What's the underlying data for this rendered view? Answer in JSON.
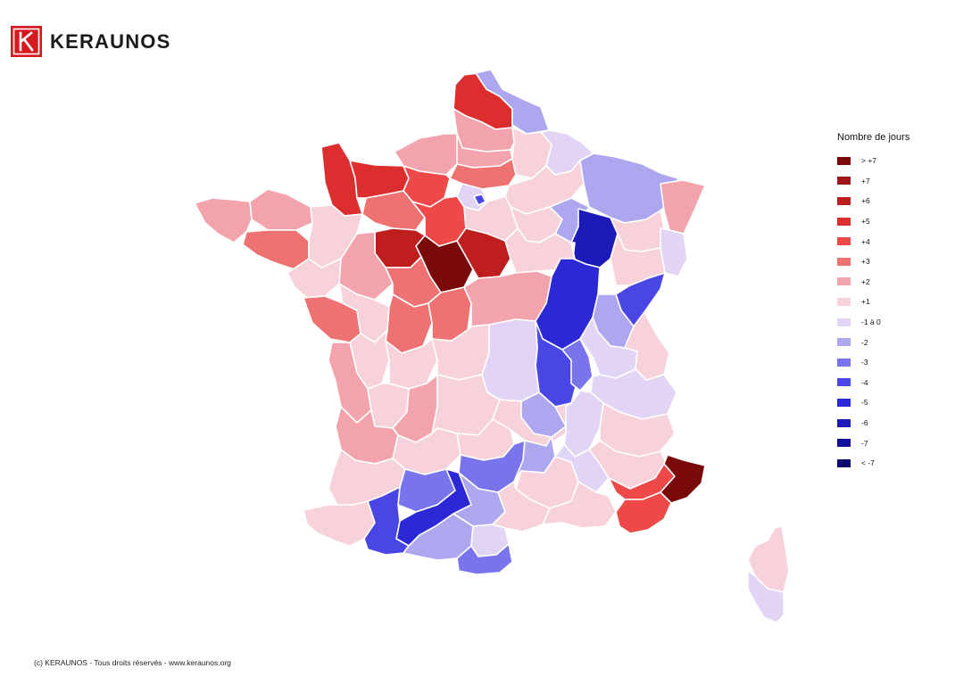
{
  "header": {
    "brand_name": "KERAUNOS",
    "logo_letter": "K",
    "logo_color": "#d71920"
  },
  "map": {
    "subject": "France-by-department",
    "border_color": "#ffffff",
    "regions": [
      {
        "id": "nord",
        "cls": "+5"
      },
      {
        "id": "nord-east-flanders",
        "cls": "-2"
      },
      {
        "id": "aisne",
        "cls": "+1"
      },
      {
        "id": "ardennes",
        "cls": "-1 à 0"
      },
      {
        "id": "pas-de-calais-coast",
        "cls": "+2"
      },
      {
        "id": "seine-maritime",
        "cls": "+2"
      },
      {
        "id": "somme",
        "cls": "+2"
      },
      {
        "id": "oise",
        "cls": "+3"
      },
      {
        "id": "manche",
        "cls": "+5"
      },
      {
        "id": "calvados",
        "cls": "+5"
      },
      {
        "id": "eure",
        "cls": "+4"
      },
      {
        "id": "paris-petite-couronne",
        "cls": "-1 à 0"
      },
      {
        "id": "paris-inner",
        "cls": "-4"
      },
      {
        "id": "marne",
        "cls": "+1"
      },
      {
        "id": "meuse-moselle",
        "cls": "-2"
      },
      {
        "id": "alsace",
        "cls": "+2"
      },
      {
        "id": "finistere",
        "cls": "+2"
      },
      {
        "id": "cotes-d-armor",
        "cls": "+2"
      },
      {
        "id": "morbihan",
        "cls": "+3"
      },
      {
        "id": "ille-et-vilaine",
        "cls": "+1"
      },
      {
        "id": "orne",
        "cls": "+3"
      },
      {
        "id": "eure-et-loir",
        "cls": "+4"
      },
      {
        "id": "seine-et-marne",
        "cls": "+1"
      },
      {
        "id": "aube",
        "cls": "+1"
      },
      {
        "id": "haute-marne",
        "cls": "-2"
      },
      {
        "id": "cote-d-or",
        "cls": "-6"
      },
      {
        "id": "vosges-haute-saone",
        "cls": "+1"
      },
      {
        "id": "territoire-de-belfort",
        "cls": "-1 à 0"
      },
      {
        "id": "sarthe",
        "cls": "+6"
      },
      {
        "id": "loir-et-cher",
        "cls": "> +7"
      },
      {
        "id": "loiret",
        "cls": "+6"
      },
      {
        "id": "yonne",
        "cls": "+1"
      },
      {
        "id": "nievre-saone-et-loire",
        "cls": "-5"
      },
      {
        "id": "doubs",
        "cls": "+1"
      },
      {
        "id": "jura",
        "cls": "-4"
      },
      {
        "id": "ain",
        "cls": "-2"
      },
      {
        "id": "mayenne-maine",
        "cls": "+2"
      },
      {
        "id": "loire-atlantique",
        "cls": "+1"
      },
      {
        "id": "vendee",
        "cls": "+3"
      },
      {
        "id": "maine-et-loire",
        "cls": "+1"
      },
      {
        "id": "indre-et-loire",
        "cls": "+3"
      },
      {
        "id": "indre",
        "cls": "+3"
      },
      {
        "id": "cher",
        "cls": "+3"
      },
      {
        "id": "allier",
        "cls": "+2"
      },
      {
        "id": "loire",
        "cls": "-4"
      },
      {
        "id": "rhone-isere",
        "cls": "-3"
      },
      {
        "id": "savoie",
        "cls": "-1 à 0"
      },
      {
        "id": "haute-savoie",
        "cls": "+1"
      },
      {
        "id": "isere-south",
        "cls": "-1 à 0"
      },
      {
        "id": "deux-sevres",
        "cls": "+1"
      },
      {
        "id": "charente-maritime",
        "cls": "+2"
      },
      {
        "id": "vienne",
        "cls": "+1"
      },
      {
        "id": "creuse",
        "cls": "+1"
      },
      {
        "id": "puy-de-dome",
        "cls": "-1 à 0"
      },
      {
        "id": "charente",
        "cls": "+1"
      },
      {
        "id": "haute-vienne",
        "cls": "+2"
      },
      {
        "id": "correze",
        "cls": "+1"
      },
      {
        "id": "cantal-haute-loire",
        "cls": "+1"
      },
      {
        "id": "ardeche",
        "cls": "-2"
      },
      {
        "id": "drome",
        "cls": "-1 à 0"
      },
      {
        "id": "hautes-alpes",
        "cls": "+1"
      },
      {
        "id": "gironde",
        "cls": "+2"
      },
      {
        "id": "dordogne",
        "cls": "+1"
      },
      {
        "id": "lot",
        "cls": "+1"
      },
      {
        "id": "aveyron",
        "cls": "-3"
      },
      {
        "id": "lozere",
        "cls": "-2"
      },
      {
        "id": "gard",
        "cls": "+1"
      },
      {
        "id": "vaucluse",
        "cls": "-1 à 0"
      },
      {
        "id": "alpes-de-haute-provence",
        "cls": "+1"
      },
      {
        "id": "landes",
        "cls": "+1"
      },
      {
        "id": "lot-et-garonne",
        "cls": "-3"
      },
      {
        "id": "tarn-et-garonne",
        "cls": "-5"
      },
      {
        "id": "tarn",
        "cls": "-2"
      },
      {
        "id": "herault",
        "cls": "+1"
      },
      {
        "id": "bouches-du-rhone",
        "cls": "+1"
      },
      {
        "id": "vaucluse-east",
        "cls": "+4"
      },
      {
        "id": "alpes-maritimes",
        "cls": "> +7"
      },
      {
        "id": "var",
        "cls": "+4"
      },
      {
        "id": "pyrenees-atlantiques",
        "cls": "+1"
      },
      {
        "id": "gers-hautes-pyrenees",
        "cls": "-4"
      },
      {
        "id": "haute-garonne",
        "cls": "-2"
      },
      {
        "id": "aude",
        "cls": "-1 à 0"
      },
      {
        "id": "pyrenees-orientales-ariege",
        "cls": "-3"
      },
      {
        "id": "haute-corse",
        "cls": "+1"
      },
      {
        "id": "corse-du-sud",
        "cls": "-1 à 0"
      }
    ]
  },
  "legend": {
    "title": "Nombre de jours",
    "items": [
      {
        "label": "> +7",
        "color": "#7a0a0a"
      },
      {
        "label": "+7",
        "color": "#a11717"
      },
      {
        "label": "+6",
        "color": "#bf1e1e"
      },
      {
        "label": "+5",
        "color": "#dc2e2e"
      },
      {
        "label": "+4",
        "color": "#ee4848"
      },
      {
        "label": "+3",
        "color": "#ef7272"
      },
      {
        "label": "+2",
        "color": "#f3a3ab"
      },
      {
        "label": "+1",
        "color": "#f8d2da"
      },
      {
        "label": "-1 à 0",
        "color": "#e1d4f4"
      },
      {
        "label": "-2",
        "color": "#ada7f0"
      },
      {
        "label": "-3",
        "color": "#7a74ec"
      },
      {
        "label": "-4",
        "color": "#4a46e6"
      },
      {
        "label": "-5",
        "color": "#2c28d6"
      },
      {
        "label": "-6",
        "color": "#1c1ab8"
      },
      {
        "label": "-7",
        "color": "#12109a"
      },
      {
        "label": "< -7",
        "color": "#0a0870"
      }
    ]
  },
  "footer": {
    "copyright": "(c) KERAUNOS - Tous droits réservés - www.keraunos.org"
  }
}
